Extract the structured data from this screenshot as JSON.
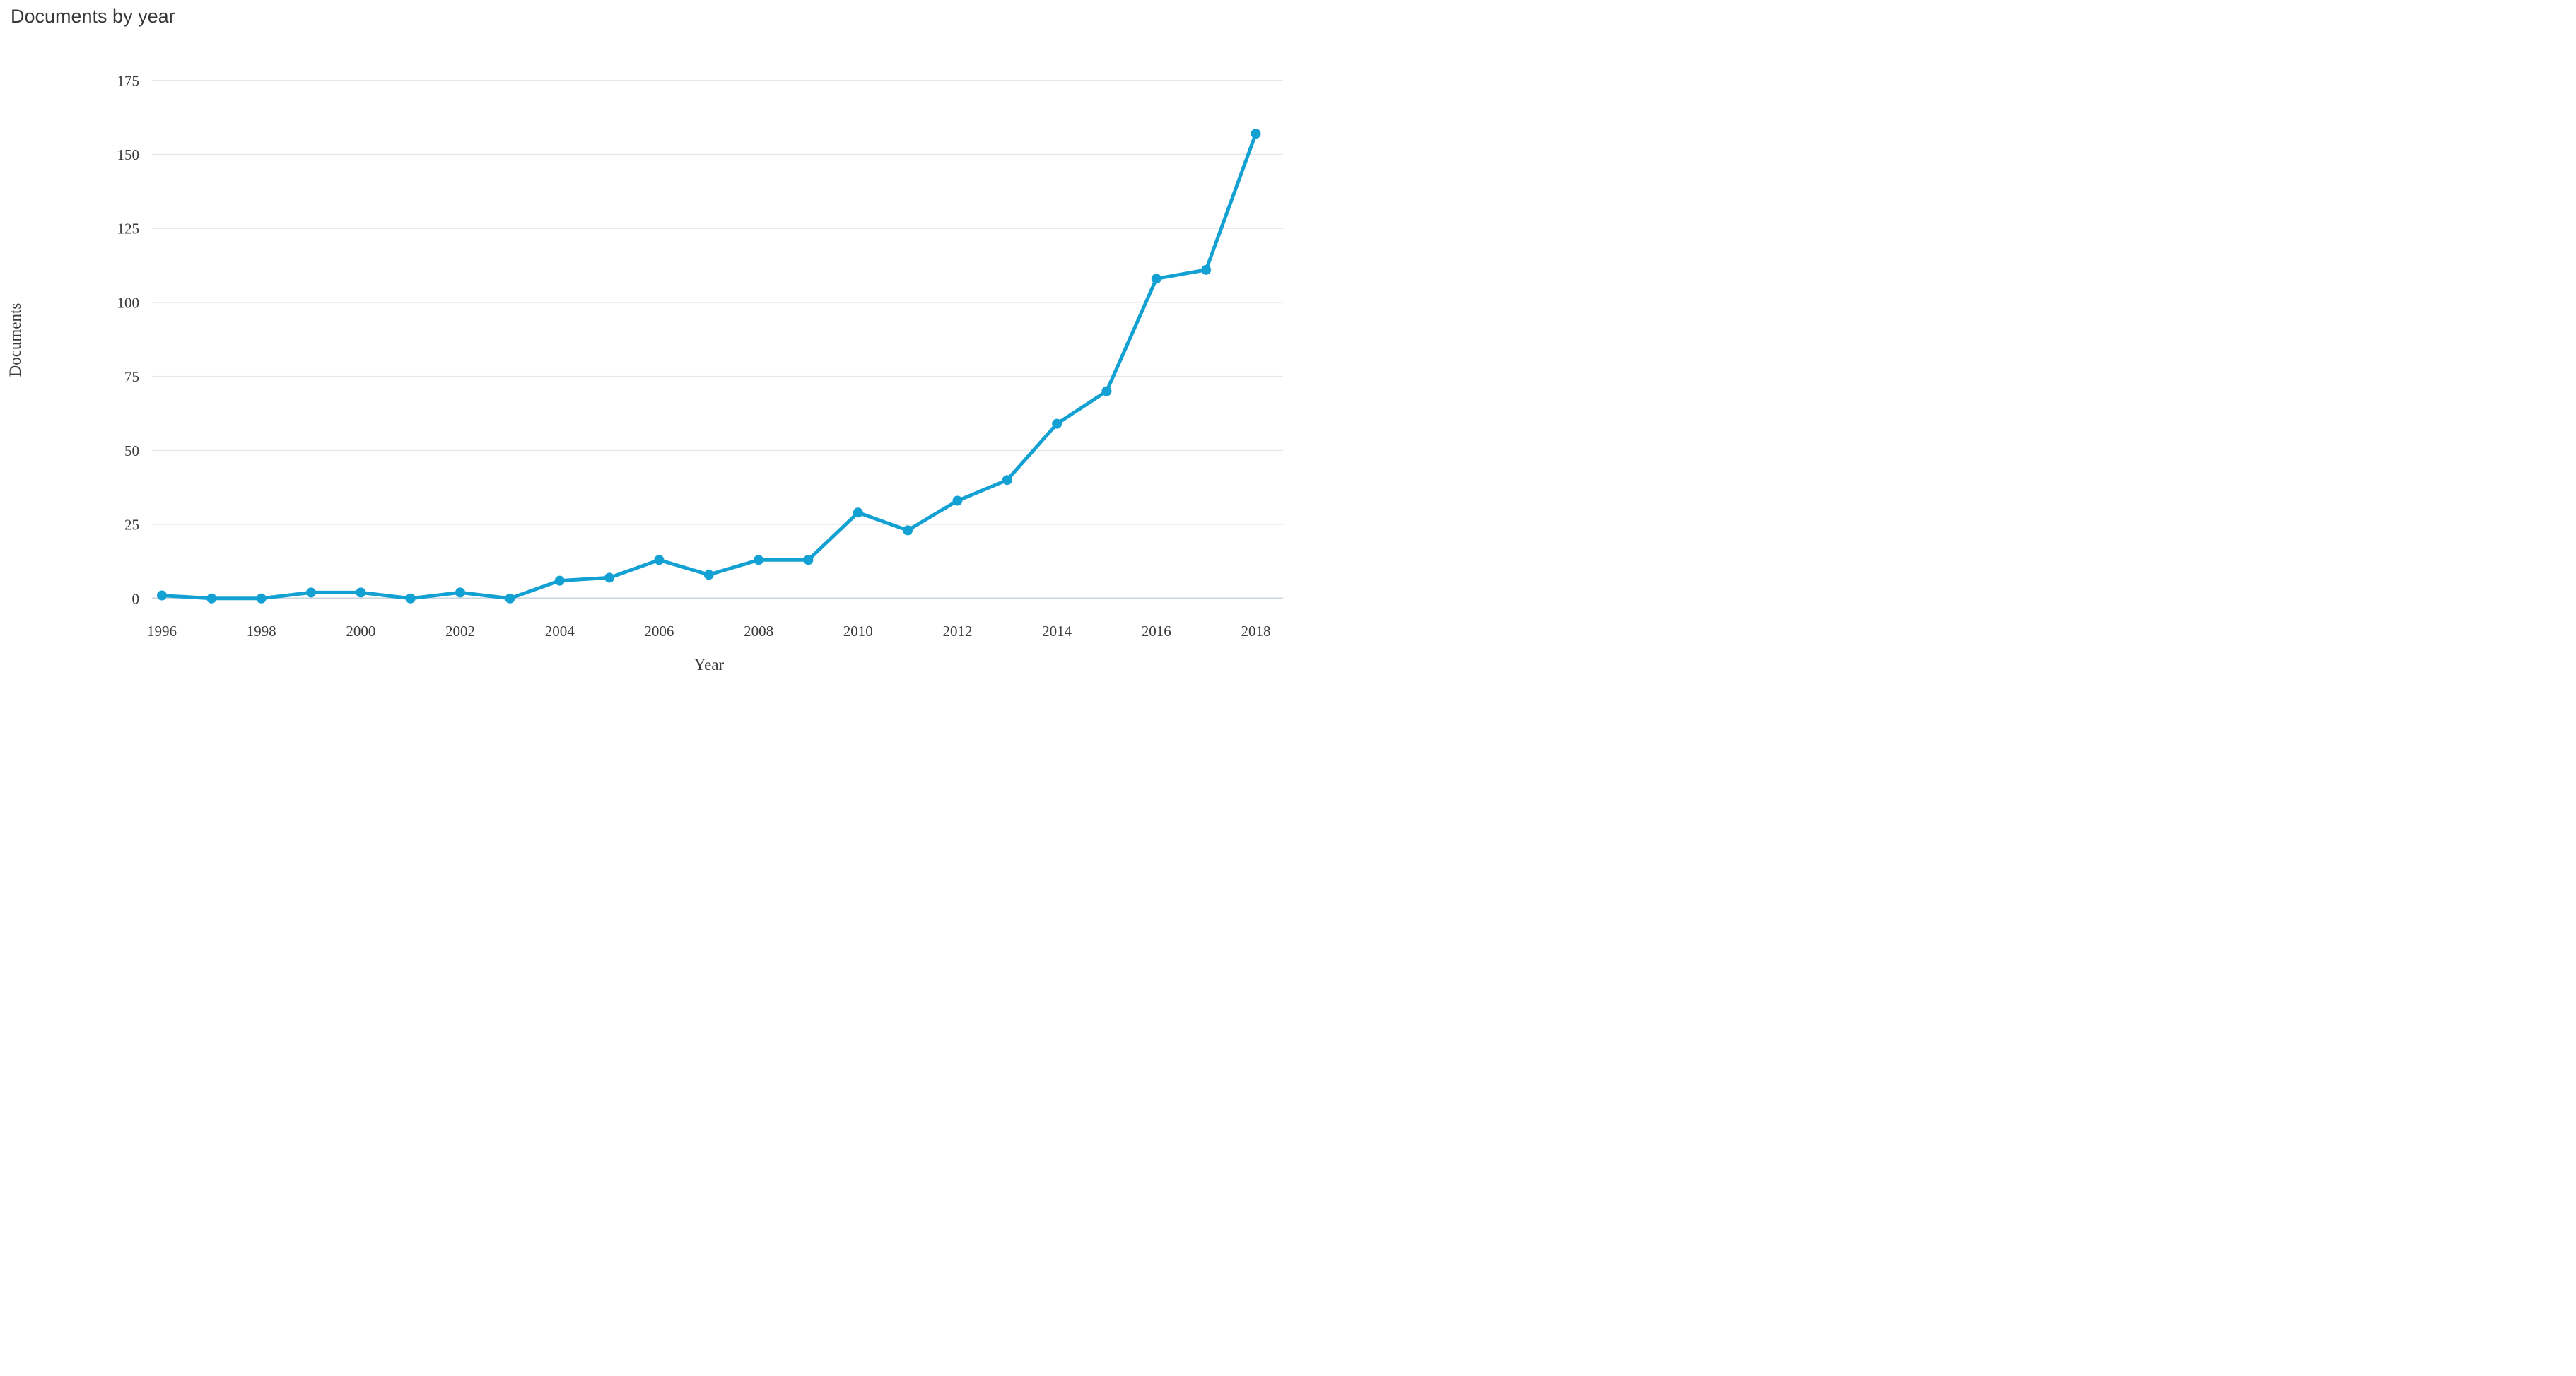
{
  "chart": {
    "title": "Documents by year",
    "x_axis_title": "Year",
    "y_axis_title": "Documents"
  },
  "chart_data": {
    "type": "line",
    "title": "Documents by year",
    "xlabel": "Year",
    "ylabel": "Documents",
    "x": [
      1996,
      1997,
      1998,
      1999,
      2000,
      2001,
      2002,
      2003,
      2004,
      2005,
      2006,
      2007,
      2008,
      2009,
      2010,
      2011,
      2012,
      2013,
      2014,
      2015,
      2016,
      2017,
      2018
    ],
    "series": [
      {
        "name": "Documents",
        "values": [
          1,
          0,
          0,
          2,
          2,
          0,
          2,
          0,
          6,
          7,
          13,
          8,
          13,
          13,
          29,
          23,
          33,
          40,
          59,
          70,
          108,
          111,
          157
        ]
      }
    ],
    "ylim": [
      0,
      175
    ],
    "ytick_step": 25,
    "ytick_labels": [
      "0",
      "25",
      "50",
      "75",
      "100",
      "125",
      "150",
      "175"
    ],
    "xtick_labels": [
      "1996",
      "1998",
      "2000",
      "2002",
      "2004",
      "2006",
      "2008",
      "2010",
      "2012",
      "2014",
      "2016",
      "2018"
    ],
    "xtick_step": 2,
    "grid": true,
    "legend": "none",
    "marker": "circle"
  },
  "colors": {
    "line": "#13a0d2",
    "marker": "#13a0d2",
    "grid_line": "#e7e7e7",
    "axis_line": "#ccd6e2",
    "title_text": "#383838",
    "tick_text": "#3b3b3b",
    "background": "#ffffff"
  }
}
